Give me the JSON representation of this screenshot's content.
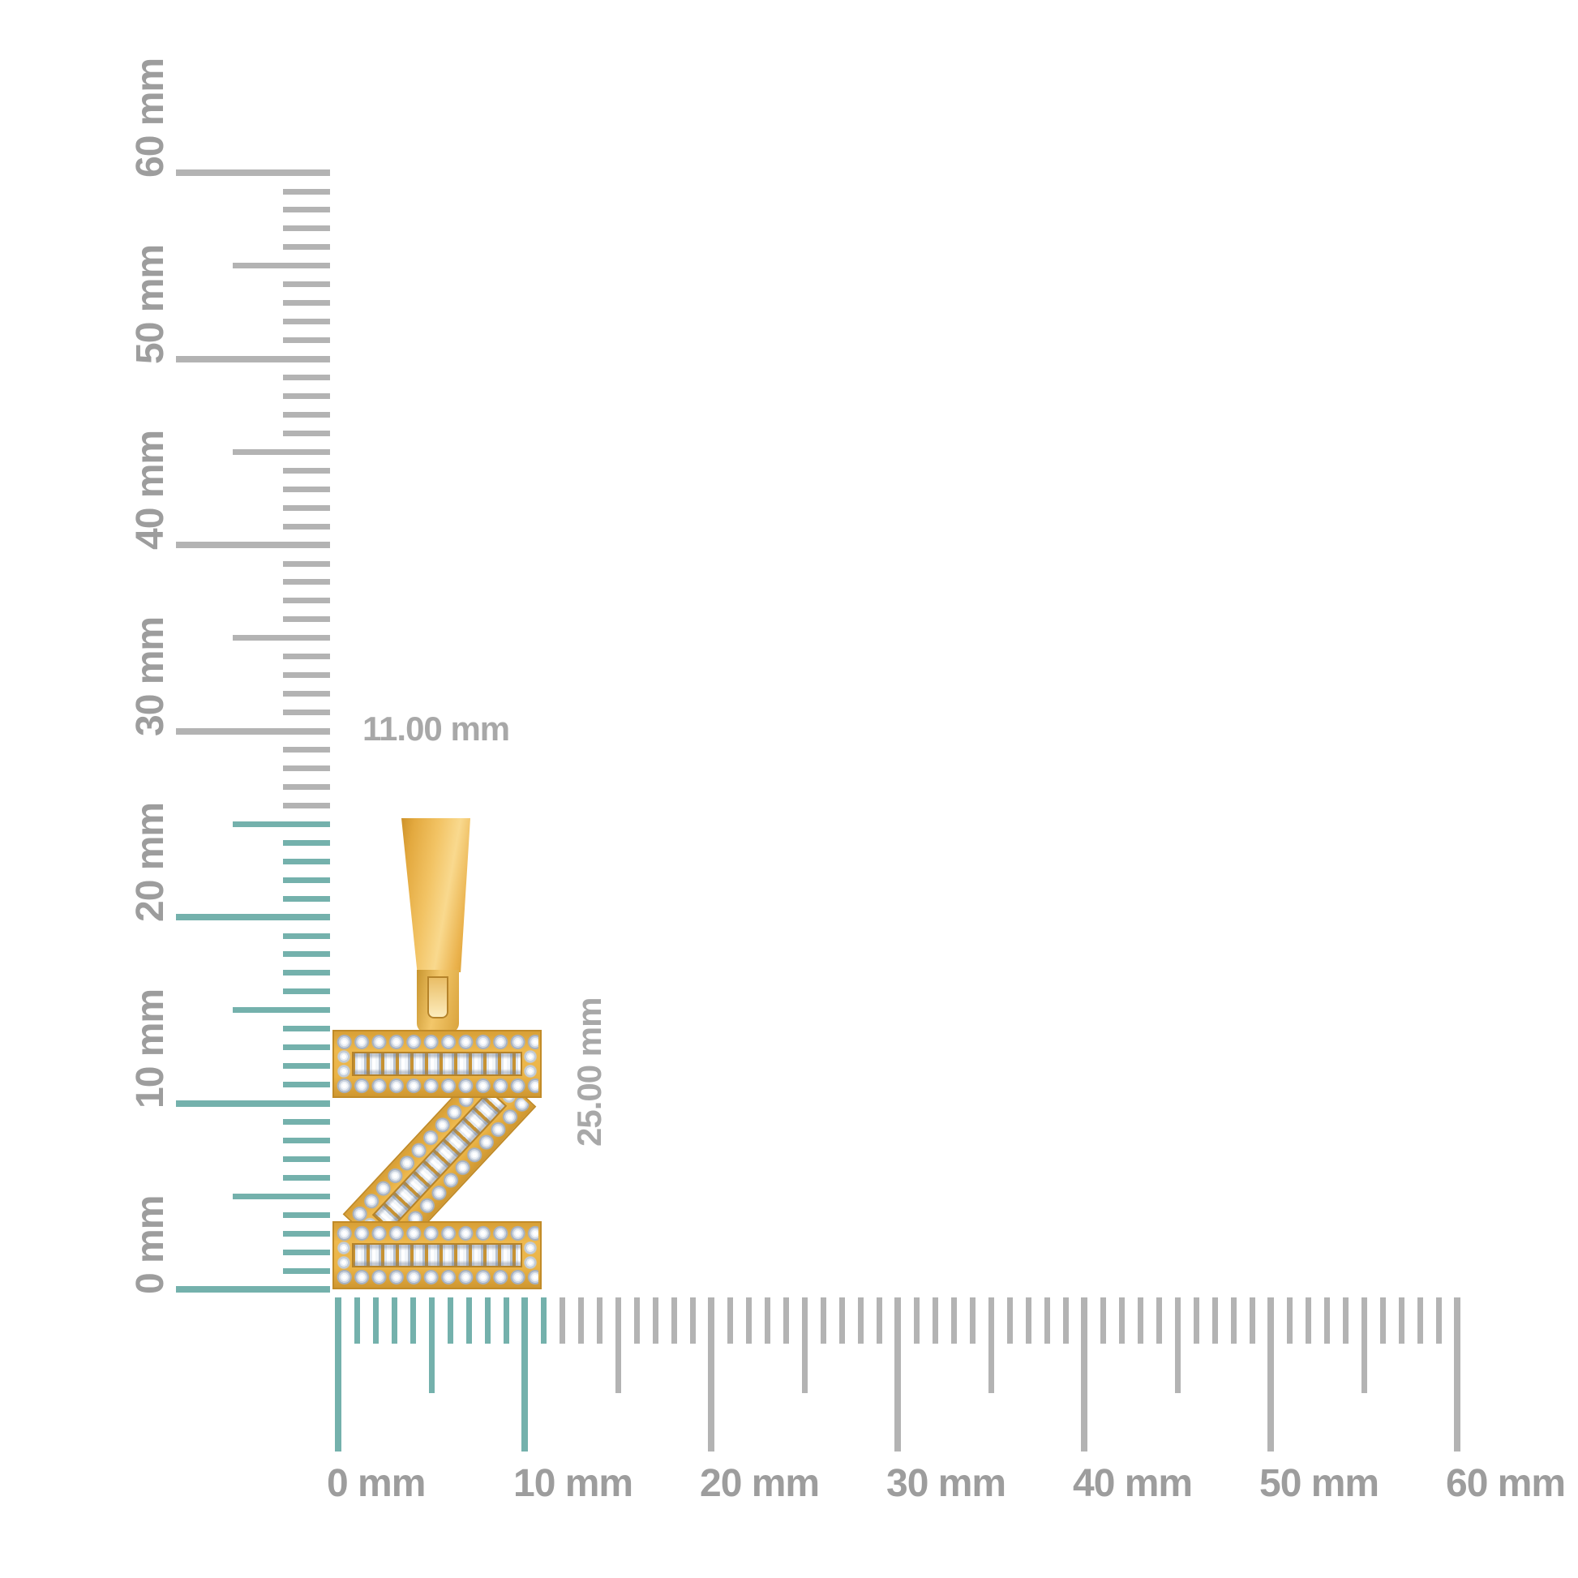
{
  "page": {
    "background": "#ffffff",
    "description": "Jewelry size diagram: yellow-gold letter Z diamond pendant shown against millimeter rulers"
  },
  "rulers": {
    "unit": "mm",
    "vertical": {
      "min": 0,
      "max": 60,
      "minor_step": 1,
      "mid_step": 5,
      "label_step": 10,
      "labels": [
        "0 mm",
        "10 mm",
        "20 mm",
        "30 mm",
        "40 mm",
        "50 mm",
        "60 mm"
      ],
      "highlight_until_mm": 25
    },
    "horizontal": {
      "min": 0,
      "max": 60,
      "minor_step": 1,
      "mid_step": 5,
      "label_step": 10,
      "labels": [
        "0 mm",
        "10 mm",
        "20 mm",
        "30 mm",
        "40 mm",
        "50 mm",
        "60 mm"
      ],
      "highlight_until_mm": 11
    },
    "colors": {
      "highlight": "#74b1ac",
      "tick": "#b3b3b3",
      "label": "#9d9d9d"
    }
  },
  "dimensions": {
    "width_label": "11.00 mm",
    "height_label": "25.00 mm",
    "color": "#a8a8a8"
  },
  "pendant": {
    "letter": "Z",
    "metal_light": "#f9d98e",
    "metal_mid": "#eab14b",
    "metal_dark": "#c18b28",
    "diamond_white": "#f7fafc",
    "diamond_shadow": "#a6b1c1",
    "stone_styles": [
      "round",
      "baguette"
    ]
  }
}
